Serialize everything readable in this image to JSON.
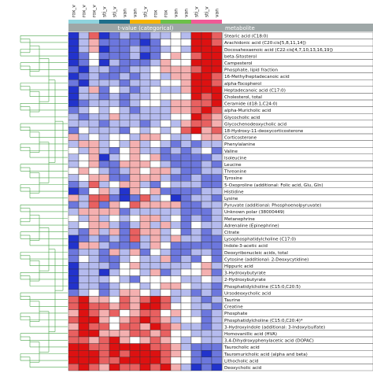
{
  "chart_data": {
    "type": "heatmap",
    "title": "",
    "column_header": "t-value (categorical)",
    "row_header": "metabolite",
    "columns": [
      "rox_v",
      "rox_v",
      "rox_v",
      "sti_v",
      "sti_v",
      "van",
      "van",
      "sti_v",
      "rox",
      "rox",
      "van",
      "van",
      "sti_v",
      "sti_v",
      "van"
    ],
    "column_groups": [
      {
        "color": "#8fd3dd",
        "count": 3
      },
      {
        "color": "#1f6f8b",
        "count": 3
      },
      {
        "color": "#f5b400",
        "count": 3
      },
      {
        "color": "#6cc04a",
        "count": 3
      },
      {
        "color": "#f05a96",
        "count": 3
      }
    ],
    "rows": [
      "Stearic acid (C18:0)",
      "Arachidonic acid (C20:cis[5,8,11,14])",
      "Docosahexaenoic acid (C22:cis[4,7,10,13,16,19])",
      "beta-Sitosterol",
      "Campesterol",
      "Phosphate, lipid fraction",
      "16-Methylheptadecanoic acid",
      "alpha-Tocopherol",
      "Heptadecanoic acid (C17:0)",
      "Cholesterol, total",
      "Ceramide (d18:1,C24:0)",
      "alpha-Muricholic acid",
      "Glycocholic acid",
      "Glycochenodeoxycholic acid",
      "18-Hydroxy-11-deoxycorticosterone",
      "Corticosterone",
      "Phenylalanine",
      "Valine",
      "Isoleucine",
      "Leucine",
      "Threonine",
      "Tyrosine",
      "5-Oxoproline (additional: Folic acid, Glu, Gln)",
      "Histidine",
      "Lysine",
      "Pyruvate (additional: Phosphoenolpyruvate)",
      "Unknown polar (38000449)",
      "Metanephrine",
      "Adrenaline (Epinephrine)",
      "Citrate",
      "Lysophosphatidylcholine (C17:0)",
      "Indole-3-acetic acid",
      "Deoxyribonucleic acids, total",
      "Cytosine (additional: 2-Deoxycytidine)",
      "Hippuric acid",
      "3-Hydroxybutyrate",
      "2-Hydroxybutyrate",
      "Phosphatidylcholine (C15:0,C20:5)",
      "Ursodeoxycholic acid",
      "Taurine",
      "Creatine",
      "Phosphate",
      "Phosphatidylcholine (C15:0,C20:4)*",
      "3-Hydroxyindole (additional: 3-Indoxylsulfate)",
      "Homovanillic acid (HVA)",
      "3,4-Dihydroxyphenylacetic acid (DOPAC)",
      "Taurocholic acid",
      "Tauromuricholic acid (alpha and beta)",
      "Lithocholic acid",
      "Deoxycholic acid"
    ],
    "color_scale": {
      "negative": "#2233cc",
      "zero": "#ffffff",
      "positive": "#dd1111",
      "range": [
        -3,
        3
      ]
    },
    "values": [
      [
        -3,
        -1,
        2,
        -3,
        -2,
        -1,
        -2,
        -2,
        -1,
        -1,
        0,
        -1,
        3,
        3,
        2
      ],
      [
        -3,
        -1,
        1,
        -2,
        -2,
        -2,
        -2,
        -3,
        -2,
        0,
        0,
        0,
        3,
        3,
        2
      ],
      [
        -3,
        -1,
        1,
        -3,
        -2,
        -2,
        -1,
        -2,
        -2,
        -1,
        0,
        -1,
        3,
        3,
        3
      ],
      [
        -3,
        -2,
        0,
        -2,
        -2,
        -2,
        -1,
        -3,
        -2,
        0,
        1,
        0,
        2,
        3,
        3
      ],
      [
        -3,
        -2,
        0,
        -3,
        -1,
        -2,
        -2,
        -2,
        -1,
        1,
        0,
        0,
        3,
        3,
        3
      ],
      [
        -2,
        -3,
        -1,
        -1,
        -2,
        -2,
        -1,
        -1,
        0,
        1,
        1,
        1,
        2,
        3,
        3
      ],
      [
        -3,
        -2,
        -1,
        -2,
        -2,
        -1,
        -2,
        -1,
        0,
        -1,
        1,
        1,
        3,
        3,
        2
      ],
      [
        -2,
        -3,
        -1,
        -1,
        -1,
        -2,
        -1,
        -1,
        -1,
        0,
        0,
        1,
        3,
        3,
        2
      ],
      [
        -3,
        -1,
        1,
        -2,
        0,
        -1,
        -2,
        -1,
        0,
        -1,
        -1,
        1,
        3,
        3,
        3
      ],
      [
        -3,
        -1,
        -1,
        -2,
        -1,
        -2,
        -1,
        -1,
        0,
        0,
        0,
        0,
        3,
        2,
        3
      ],
      [
        -3,
        -2,
        -1,
        -1,
        -1,
        -2,
        -1,
        0,
        0,
        -1,
        1,
        1,
        2,
        2,
        3
      ],
      [
        -2,
        -1,
        0,
        -1,
        0,
        -1,
        -2,
        -1,
        -1,
        -1,
        1,
        1,
        2,
        3,
        2
      ],
      [
        -1,
        -2,
        -1,
        -1,
        1,
        -1,
        -1,
        -1,
        -1,
        -1,
        0,
        0,
        3,
        2,
        1
      ],
      [
        -1,
        -1,
        -1,
        -2,
        -1,
        -1,
        -1,
        -2,
        -1,
        0,
        -1,
        1,
        2,
        2,
        1
      ],
      [
        -2,
        0,
        -1,
        -1,
        -1,
        -2,
        0,
        -1,
        0,
        -1,
        0,
        2,
        3,
        1,
        2
      ],
      [
        1,
        -1,
        0,
        -1,
        0,
        0,
        -1,
        1,
        1,
        0,
        -1,
        -1,
        0,
        1,
        1
      ],
      [
        -1,
        1,
        1,
        -1,
        0,
        -1,
        1,
        -1,
        0,
        -1,
        -2,
        -1,
        -2,
        -1,
        -1
      ],
      [
        0,
        -1,
        1,
        -1,
        -2,
        0,
        1,
        -1,
        -1,
        -2,
        -1,
        -2,
        -1,
        0,
        -2
      ],
      [
        -1,
        0,
        1,
        -3,
        -1,
        0,
        1,
        0,
        1,
        -2,
        -2,
        -2,
        -2,
        -2,
        -1
      ],
      [
        -1,
        0,
        1,
        -2,
        -2,
        1,
        1,
        1,
        0,
        -1,
        -2,
        -2,
        -2,
        -1,
        -2
      ],
      [
        0,
        1,
        0,
        -1,
        -2,
        -1,
        1,
        0,
        1,
        1,
        -1,
        -2,
        -2,
        -1,
        -1
      ],
      [
        -1,
        0,
        1,
        1,
        -2,
        -2,
        1,
        1,
        1,
        -1,
        -2,
        -2,
        -1,
        -2,
        -2
      ],
      [
        -2,
        -1,
        2,
        -1,
        0,
        1,
        1,
        -1,
        -2,
        0,
        -1,
        -1,
        -1,
        -2,
        -2
      ],
      [
        -3,
        -2,
        0,
        1,
        -1,
        -3,
        1,
        0,
        1,
        -2,
        -2,
        -2,
        -2,
        -1,
        -1
      ],
      [
        1,
        -1,
        2,
        2,
        -2,
        -3,
        -2,
        2,
        -1,
        0,
        -3,
        -2,
        -1,
        -1,
        -2
      ],
      [
        -2,
        -1,
        2,
        -2,
        1,
        0,
        2,
        1,
        1,
        1,
        1,
        -2,
        -2,
        -1,
        -1
      ],
      [
        -1,
        1,
        1,
        1,
        1,
        -2,
        -1,
        -1,
        -1,
        -1,
        -1,
        -2,
        -2,
        -2,
        -1
      ],
      [
        0,
        -1,
        1,
        -1,
        0,
        -1,
        0,
        1,
        1,
        -1,
        0,
        -2,
        -1,
        -2,
        -1
      ],
      [
        -1,
        0,
        1,
        1,
        -1,
        -2,
        -1,
        1,
        -1,
        1,
        -1,
        -2,
        0,
        -1,
        -1
      ],
      [
        -1,
        -2,
        1,
        -1,
        1,
        -2,
        2,
        1,
        1,
        -1,
        0,
        -2,
        -1,
        -2,
        -1
      ],
      [
        -3,
        -2,
        -1,
        -2,
        -1,
        -2,
        2,
        -1,
        1,
        -1,
        1,
        -1,
        -1,
        -2,
        -2
      ],
      [
        -3,
        1,
        1,
        -1,
        -2,
        -2,
        -2,
        -1,
        1,
        0,
        -2,
        -2,
        -2,
        -2,
        -2
      ],
      [
        -2,
        -1,
        -1,
        -2,
        1,
        -1,
        1,
        -2,
        0,
        -1,
        -2,
        -2,
        -1,
        -1,
        -2
      ],
      [
        -2,
        0,
        -1,
        -2,
        -2,
        -1,
        0,
        -1,
        -1,
        1,
        -2,
        -1,
        -2,
        0,
        -2
      ],
      [
        -3,
        -1,
        -1,
        -1,
        -2,
        0,
        1,
        -1,
        -1,
        -1,
        -1,
        -1,
        0,
        1,
        -1
      ],
      [
        -3,
        -1,
        -1,
        -3,
        -1,
        0,
        0,
        -1,
        1,
        -2,
        -1,
        0,
        0,
        1,
        -2
      ],
      [
        -3,
        -1,
        -1,
        -1,
        0,
        -1,
        -2,
        0,
        0,
        0,
        0,
        -1,
        -1,
        0,
        -1
      ],
      [
        -3,
        -1,
        -1,
        -2,
        -1,
        0,
        0,
        -1,
        0,
        1,
        1,
        0,
        -1,
        -1,
        -2
      ],
      [
        -2,
        -1,
        0,
        -2,
        -1,
        1,
        1,
        0,
        -1,
        0,
        -1,
        -1,
        -2,
        -1,
        -2
      ],
      [
        2,
        3,
        1,
        1,
        0,
        2,
        1,
        2,
        3,
        2,
        -1,
        0,
        -1,
        -2,
        -1
      ],
      [
        2,
        3,
        2,
        2,
        1,
        2,
        1,
        3,
        3,
        2,
        0,
        0,
        -1,
        -1,
        -2
      ],
      [
        1,
        3,
        2,
        1,
        2,
        0,
        1,
        2,
        2,
        0,
        1,
        0,
        -1,
        -2,
        -1
      ],
      [
        2,
        3,
        3,
        1,
        0,
        1,
        2,
        3,
        2,
        1,
        -1,
        0,
        0,
        -2,
        -1
      ],
      [
        1,
        3,
        2,
        2,
        0,
        2,
        2,
        1,
        3,
        2,
        1,
        -1,
        -1,
        -2,
        -1
      ],
      [
        2,
        3,
        3,
        1,
        1,
        1,
        2,
        2,
        1,
        2,
        0,
        0,
        -1,
        -1,
        -1
      ],
      [
        2,
        2,
        1,
        2,
        3,
        1,
        0,
        1,
        2,
        1,
        0,
        -1,
        0,
        -1,
        -1
      ],
      [
        3,
        3,
        2,
        2,
        3,
        3,
        3,
        3,
        2,
        2,
        1,
        -1,
        -2,
        -2,
        -2
      ],
      [
        3,
        3,
        3,
        2,
        3,
        2,
        3,
        3,
        3,
        2,
        1,
        0,
        -2,
        -3,
        -2
      ],
      [
        3,
        3,
        3,
        2,
        2,
        3,
        3,
        3,
        3,
        2,
        0,
        0,
        -2,
        -2,
        -2
      ],
      [
        2,
        3,
        2,
        1,
        3,
        2,
        2,
        3,
        2,
        3,
        1,
        -1,
        -3,
        -2,
        -3
      ]
    ]
  }
}
